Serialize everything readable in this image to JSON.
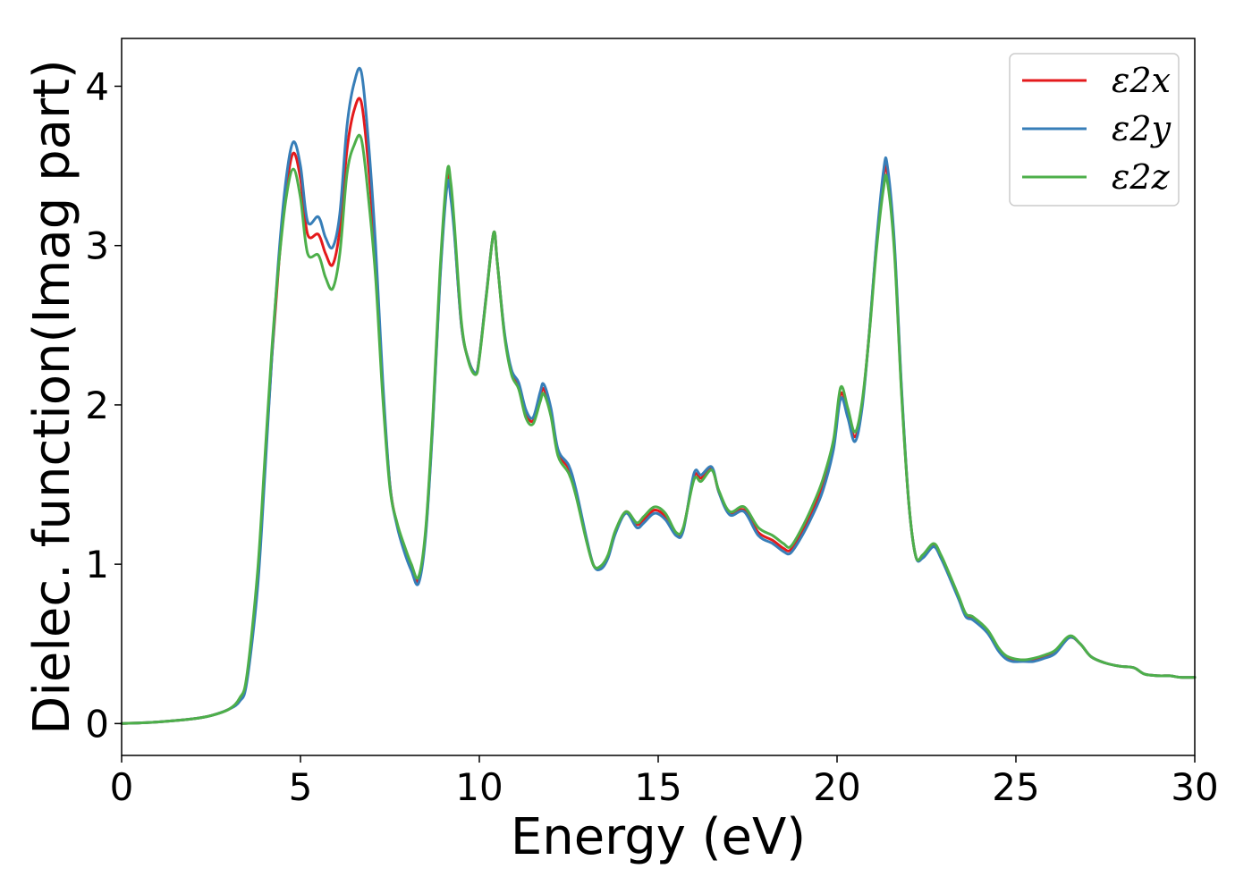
{
  "chart_data": {
    "type": "line",
    "title": "",
    "xlabel": "Energy (eV)",
    "ylabel": "Dielec. function(Imag part)",
    "xlim": [
      0,
      30
    ],
    "ylim": [
      -0.2,
      4.3
    ],
    "xticks": [
      0,
      5,
      10,
      15,
      20,
      25,
      30
    ],
    "yticks": [
      0,
      1,
      2,
      3,
      4
    ],
    "grid": false,
    "legend_position": "top-right",
    "series": [
      {
        "name": "ε2x",
        "color": "#e41a1c",
        "x": [
          0,
          1,
          2,
          2.5,
          3,
          3.3,
          3.5,
          3.8,
          4.0,
          4.2,
          4.4,
          4.6,
          4.8,
          5.0,
          5.2,
          5.5,
          5.7,
          5.9,
          6.1,
          6.3,
          6.5,
          6.7,
          6.9,
          7.1,
          7.3,
          7.5,
          7.7,
          7.9,
          8.1,
          8.3,
          8.5,
          8.7,
          8.9,
          9.1,
          9.2,
          9.3,
          9.5,
          9.7,
          9.9,
          10.0,
          10.2,
          10.4,
          10.5,
          10.7,
          10.9,
          11.1,
          11.3,
          11.5,
          11.7,
          11.8,
          12.0,
          12.2,
          12.5,
          12.7,
          13.0,
          13.2,
          13.4,
          13.6,
          13.8,
          14.1,
          14.4,
          14.6,
          14.9,
          15.2,
          15.5,
          15.7,
          16.0,
          16.2,
          16.5,
          16.7,
          17.0,
          17.4,
          17.8,
          18.2,
          18.5,
          18.7,
          19.0,
          19.3,
          19.6,
          19.9,
          20.1,
          20.3,
          20.5,
          20.7,
          20.9,
          21.1,
          21.3,
          21.4,
          21.6,
          21.8,
          22.0,
          22.2,
          22.4,
          22.7,
          22.9,
          23.1,
          23.4,
          23.6,
          23.8,
          24.2,
          24.5,
          24.7,
          24.9,
          25.2,
          25.5,
          25.8,
          26.1,
          26.5,
          26.8,
          27.1,
          27.5,
          27.9,
          28.3,
          28.6,
          29.0,
          29.3,
          29.6,
          30
        ],
        "y": [
          0.0,
          0.01,
          0.03,
          0.05,
          0.09,
          0.15,
          0.28,
          0.9,
          1.6,
          2.3,
          2.9,
          3.35,
          3.58,
          3.42,
          3.07,
          3.07,
          2.95,
          2.88,
          3.1,
          3.6,
          3.85,
          3.9,
          3.5,
          2.9,
          2.1,
          1.5,
          1.25,
          1.1,
          0.98,
          0.9,
          1.2,
          1.9,
          2.8,
          3.42,
          3.35,
          3.1,
          2.5,
          2.28,
          2.2,
          2.3,
          2.7,
          3.08,
          2.9,
          2.45,
          2.2,
          2.12,
          1.95,
          1.9,
          2.05,
          2.1,
          1.95,
          1.7,
          1.6,
          1.45,
          1.15,
          0.99,
          0.98,
          1.05,
          1.2,
          1.33,
          1.25,
          1.28,
          1.34,
          1.3,
          1.19,
          1.22,
          1.55,
          1.54,
          1.6,
          1.45,
          1.32,
          1.34,
          1.2,
          1.15,
          1.1,
          1.09,
          1.2,
          1.33,
          1.5,
          1.75,
          2.07,
          1.95,
          1.8,
          2.0,
          2.45,
          3.0,
          3.42,
          3.47,
          3.0,
          2.1,
          1.4,
          1.05,
          1.05,
          1.12,
          1.05,
          0.95,
          0.79,
          0.68,
          0.66,
          0.58,
          0.47,
          0.42,
          0.4,
          0.4,
          0.4,
          0.42,
          0.45,
          0.54,
          0.5,
          0.42,
          0.38,
          0.36,
          0.35,
          0.31,
          0.3,
          0.3,
          0.29,
          0.29
        ]
      },
      {
        "name": "ε2y",
        "color": "#377eb8",
        "x": [
          0,
          1,
          2,
          2.5,
          3,
          3.3,
          3.5,
          3.8,
          4.0,
          4.2,
          4.4,
          4.6,
          4.8,
          5.0,
          5.2,
          5.5,
          5.7,
          5.9,
          6.1,
          6.3,
          6.5,
          6.7,
          6.9,
          7.1,
          7.3,
          7.5,
          7.7,
          7.9,
          8.1,
          8.3,
          8.5,
          8.7,
          8.9,
          9.1,
          9.2,
          9.3,
          9.5,
          9.7,
          9.9,
          10.0,
          10.2,
          10.4,
          10.5,
          10.7,
          10.9,
          11.1,
          11.3,
          11.5,
          11.7,
          11.8,
          12.0,
          12.2,
          12.5,
          12.7,
          13.0,
          13.2,
          13.4,
          13.6,
          13.8,
          14.1,
          14.4,
          14.6,
          14.9,
          15.2,
          15.5,
          15.7,
          16.0,
          16.2,
          16.5,
          16.7,
          17.0,
          17.4,
          17.8,
          18.2,
          18.5,
          18.7,
          19.0,
          19.3,
          19.6,
          19.9,
          20.1,
          20.3,
          20.5,
          20.7,
          20.9,
          21.1,
          21.3,
          21.4,
          21.6,
          21.8,
          22.0,
          22.2,
          22.4,
          22.7,
          22.9,
          23.1,
          23.4,
          23.6,
          23.8,
          24.2,
          24.5,
          24.7,
          24.9,
          25.2,
          25.5,
          25.8,
          26.1,
          26.5,
          26.8,
          27.1,
          27.5,
          27.9,
          28.3,
          28.6,
          29.0,
          29.3,
          29.6,
          30
        ],
        "y": [
          0.0,
          0.01,
          0.03,
          0.05,
          0.09,
          0.14,
          0.26,
          0.85,
          1.55,
          2.3,
          2.95,
          3.42,
          3.65,
          3.5,
          3.15,
          3.18,
          3.05,
          2.99,
          3.2,
          3.75,
          4.02,
          4.09,
          3.65,
          3.0,
          2.15,
          1.5,
          1.24,
          1.08,
          0.96,
          0.88,
          1.18,
          1.88,
          2.78,
          3.38,
          3.3,
          3.08,
          2.5,
          2.28,
          2.2,
          2.3,
          2.7,
          3.08,
          2.9,
          2.46,
          2.22,
          2.14,
          1.97,
          1.92,
          2.08,
          2.13,
          1.98,
          1.72,
          1.62,
          1.47,
          1.16,
          0.99,
          0.97,
          1.04,
          1.19,
          1.32,
          1.23,
          1.26,
          1.32,
          1.28,
          1.18,
          1.21,
          1.57,
          1.56,
          1.61,
          1.45,
          1.31,
          1.33,
          1.18,
          1.13,
          1.08,
          1.07,
          1.17,
          1.3,
          1.46,
          1.72,
          2.04,
          1.92,
          1.77,
          1.98,
          2.45,
          3.02,
          3.47,
          3.51,
          3.03,
          2.12,
          1.4,
          1.05,
          1.04,
          1.11,
          1.04,
          0.94,
          0.78,
          0.67,
          0.65,
          0.57,
          0.46,
          0.41,
          0.39,
          0.39,
          0.39,
          0.41,
          0.44,
          0.54,
          0.5,
          0.42,
          0.38,
          0.36,
          0.35,
          0.31,
          0.3,
          0.3,
          0.29,
          0.29
        ]
      },
      {
        "name": "ε2z",
        "color": "#4daf4a",
        "x": [
          0,
          1,
          2,
          2.5,
          3,
          3.3,
          3.5,
          3.8,
          4.0,
          4.2,
          4.4,
          4.6,
          4.8,
          5.0,
          5.2,
          5.5,
          5.7,
          5.9,
          6.1,
          6.3,
          6.5,
          6.7,
          6.9,
          7.1,
          7.3,
          7.5,
          7.7,
          7.9,
          8.1,
          8.3,
          8.5,
          8.7,
          8.9,
          9.1,
          9.2,
          9.3,
          9.5,
          9.7,
          9.9,
          10.0,
          10.2,
          10.4,
          10.5,
          10.7,
          10.9,
          11.1,
          11.3,
          11.5,
          11.7,
          11.8,
          12.0,
          12.2,
          12.5,
          12.7,
          13.0,
          13.2,
          13.4,
          13.6,
          13.8,
          14.1,
          14.4,
          14.6,
          14.9,
          15.2,
          15.5,
          15.7,
          16.0,
          16.2,
          16.5,
          16.7,
          17.0,
          17.4,
          17.8,
          18.2,
          18.5,
          18.7,
          19.0,
          19.3,
          19.6,
          19.9,
          20.1,
          20.3,
          20.5,
          20.7,
          20.9,
          21.1,
          21.3,
          21.4,
          21.6,
          21.8,
          22.0,
          22.2,
          22.4,
          22.7,
          22.9,
          23.1,
          23.4,
          23.6,
          23.8,
          24.2,
          24.5,
          24.7,
          24.9,
          25.2,
          25.5,
          25.8,
          26.1,
          26.5,
          26.8,
          27.1,
          27.5,
          27.9,
          28.3,
          28.6,
          29.0,
          29.3,
          29.6,
          30
        ],
        "y": [
          0.0,
          0.01,
          0.03,
          0.05,
          0.09,
          0.16,
          0.3,
          0.95,
          1.65,
          2.35,
          2.9,
          3.3,
          3.48,
          3.3,
          2.95,
          2.94,
          2.8,
          2.73,
          2.95,
          3.45,
          3.63,
          3.67,
          3.3,
          2.8,
          2.05,
          1.48,
          1.26,
          1.12,
          1.0,
          0.92,
          1.22,
          1.93,
          2.84,
          3.46,
          3.4,
          3.14,
          2.52,
          2.27,
          2.19,
          2.29,
          2.69,
          3.08,
          2.9,
          2.44,
          2.19,
          2.1,
          1.92,
          1.88,
          2.02,
          2.07,
          1.93,
          1.68,
          1.57,
          1.43,
          1.14,
          0.99,
          0.99,
          1.06,
          1.21,
          1.33,
          1.26,
          1.3,
          1.36,
          1.32,
          1.2,
          1.23,
          1.53,
          1.52,
          1.59,
          1.46,
          1.33,
          1.36,
          1.23,
          1.18,
          1.13,
          1.11,
          1.22,
          1.36,
          1.53,
          1.78,
          2.11,
          1.98,
          1.83,
          2.02,
          2.44,
          2.97,
          3.36,
          3.41,
          2.97,
          2.08,
          1.4,
          1.05,
          1.06,
          1.13,
          1.06,
          0.96,
          0.8,
          0.69,
          0.67,
          0.59,
          0.48,
          0.43,
          0.41,
          0.4,
          0.41,
          0.43,
          0.46,
          0.55,
          0.5,
          0.42,
          0.38,
          0.36,
          0.35,
          0.31,
          0.3,
          0.3,
          0.29,
          0.29
        ]
      }
    ]
  }
}
